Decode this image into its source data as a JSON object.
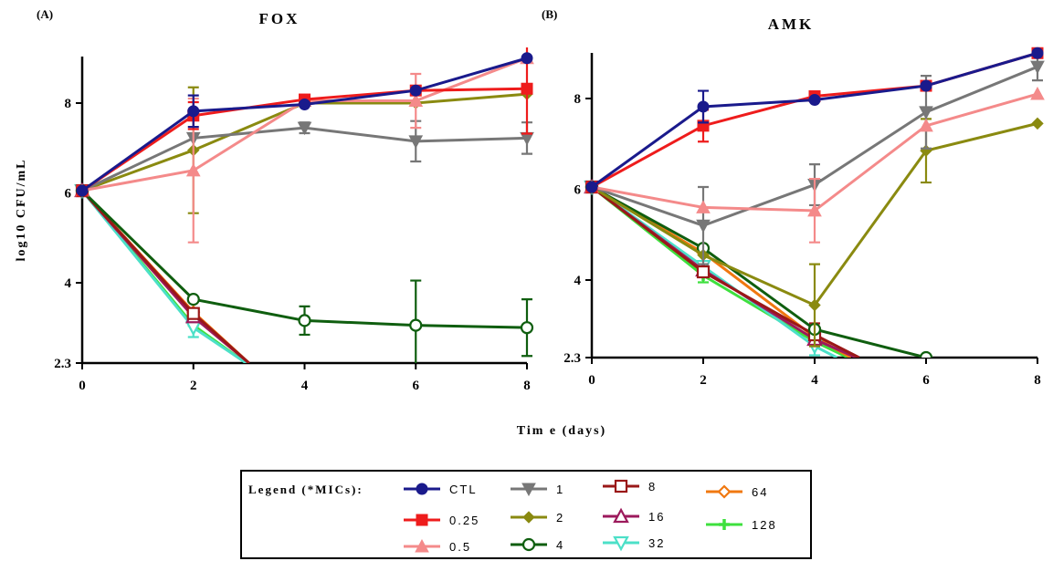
{
  "xlabel": "Tim e (days)",
  "ylabel": "log10 CFU/mL",
  "legend": {
    "title": "Legend (*MICs):",
    "colors": {
      "CTL": "#1a1a8c",
      "0.25": "#ee1c1c",
      "0.5": "#f48a8a",
      "1": "#777777",
      "2": "#8a8a10",
      "4": "#0f5e0f",
      "8": "#9a1818",
      "16": "#9c1a5c",
      "32": "#4ce0c8",
      "64": "#f07810",
      "128": "#3ee03e"
    },
    "markers": {
      "CTL": "circle",
      "0.25": "square",
      "0.5": "triangle-up",
      "1": "triangle-down",
      "2": "diamond",
      "4": "circle-open",
      "8": "square-open",
      "16": "triangle-up-open",
      "32": "triangle-down-open",
      "64": "diamond-open",
      "128": "plus"
    }
  },
  "chart_data": [
    {
      "type": "line",
      "panel_label": "(A)",
      "title": "FOX",
      "x_ticks": [
        0,
        2,
        4,
        6,
        8
      ],
      "y_ticks": [
        2.3,
        4,
        6,
        8
      ],
      "y_tick_labels": [
        "2.3",
        "4",
        "6",
        "8"
      ],
      "xlim": [
        0,
        8
      ],
      "ylim": [
        2.3,
        9.1
      ],
      "series": [
        {
          "name": "CTL",
          "x": [
            0,
            2,
            4,
            6,
            8
          ],
          "y": [
            6.05,
            7.82,
            7.97,
            8.28,
            9.0
          ],
          "err": [
            0,
            0.35,
            0,
            0,
            0
          ]
        },
        {
          "name": "0.25",
          "x": [
            0,
            2,
            4,
            6,
            8
          ],
          "y": [
            6.05,
            7.72,
            8.08,
            8.28,
            8.32
          ],
          "err": [
            0,
            0.3,
            0,
            0,
            1.0
          ]
        },
        {
          "name": "0.5",
          "x": [
            0,
            2,
            4,
            6,
            8
          ],
          "y": [
            6.05,
            6.5,
            8.05,
            8.05,
            9.0
          ],
          "err": [
            0,
            1.6,
            0,
            0.6,
            0
          ]
        },
        {
          "name": "1",
          "x": [
            0,
            2,
            4,
            6,
            8
          ],
          "y": [
            6.05,
            7.22,
            7.45,
            7.15,
            7.22
          ],
          "err": [
            0,
            0,
            0.12,
            0.45,
            0.35
          ]
        },
        {
          "name": "2",
          "x": [
            0,
            2,
            4,
            6,
            8
          ],
          "y": [
            6.05,
            6.95,
            8.0,
            8.0,
            8.2
          ],
          "err": [
            0,
            1.4,
            0,
            0,
            0
          ]
        },
        {
          "name": "4",
          "x": [
            0,
            2,
            4,
            6,
            8
          ],
          "y": [
            6.05,
            3.65,
            3.2,
            3.1,
            3.05
          ],
          "err": [
            0,
            0,
            0.3,
            0.95,
            0.6
          ]
        },
        {
          "name": "8",
          "x": [
            0,
            2,
            3
          ],
          "y": [
            6.05,
            3.35,
            2.3
          ],
          "err": [
            0,
            0,
            0
          ]
        },
        {
          "name": "16",
          "x": [
            0,
            2,
            3
          ],
          "y": [
            6.05,
            3.28,
            2.3
          ],
          "err": [
            0,
            0,
            0
          ]
        },
        {
          "name": "32",
          "x": [
            0,
            2,
            2.95
          ],
          "y": [
            6.05,
            3.05,
            2.3
          ],
          "err": [
            0,
            0.2,
            0
          ]
        },
        {
          "name": "64",
          "x": [
            0,
            2,
            3
          ],
          "y": [
            6.05,
            3.38,
            2.3
          ],
          "err": [
            0,
            0,
            0
          ]
        },
        {
          "name": "128",
          "x": [
            0,
            2,
            2.95
          ],
          "y": [
            6.05,
            3.1,
            2.3
          ],
          "err": [
            0,
            0,
            0
          ]
        }
      ]
    },
    {
      "type": "line",
      "panel_label": "(B)",
      "title": "AMK",
      "x_ticks": [
        0,
        2,
        4,
        6,
        8
      ],
      "y_ticks": [
        2.3,
        4,
        6,
        8
      ],
      "y_tick_labels": [
        "2.3",
        "4",
        "6",
        "8"
      ],
      "xlim": [
        0,
        8
      ],
      "ylim": [
        2.3,
        9.1
      ],
      "series": [
        {
          "name": "CTL",
          "x": [
            0,
            2,
            4,
            6,
            8
          ],
          "y": [
            6.05,
            7.82,
            7.97,
            8.28,
            9.0
          ],
          "err": [
            0,
            0.35,
            0,
            0,
            0
          ]
        },
        {
          "name": "0.25",
          "x": [
            0,
            2,
            4,
            6,
            8
          ],
          "y": [
            6.05,
            7.4,
            8.05,
            8.28,
            9.0
          ],
          "err": [
            0,
            0.35,
            0,
            0,
            0
          ]
        },
        {
          "name": "0.5",
          "x": [
            0,
            2,
            4,
            6,
            8
          ],
          "y": [
            6.05,
            5.6,
            5.53,
            7.4,
            8.1
          ],
          "err": [
            0,
            0,
            0.7,
            0,
            0
          ]
        },
        {
          "name": "1",
          "x": [
            0,
            2,
            4,
            6,
            8
          ],
          "y": [
            6.05,
            5.2,
            6.1,
            7.7,
            8.7
          ],
          "err": [
            0,
            0.85,
            0.45,
            0.8,
            0.3
          ]
        },
        {
          "name": "2",
          "x": [
            0,
            2,
            4,
            6,
            8
          ],
          "y": [
            6.05,
            4.55,
            3.45,
            6.85,
            7.45
          ],
          "err": [
            0,
            0,
            0.9,
            0.7,
            0
          ]
        },
        {
          "name": "4",
          "x": [
            0,
            2,
            4,
            6
          ],
          "y": [
            6.05,
            4.7,
            2.92,
            2.3
          ],
          "err": [
            0,
            0,
            0,
            0
          ]
        },
        {
          "name": "8",
          "x": [
            0,
            2,
            4,
            4.8
          ],
          "y": [
            6.05,
            4.18,
            2.8,
            2.3
          ],
          "err": [
            0,
            0,
            0.25,
            0
          ]
        },
        {
          "name": "16",
          "x": [
            0,
            2,
            4,
            4.75
          ],
          "y": [
            6.05,
            4.22,
            2.7,
            2.3
          ],
          "err": [
            0,
            0,
            0,
            0
          ]
        },
        {
          "name": "32",
          "x": [
            0,
            2,
            4,
            4.4
          ],
          "y": [
            6.05,
            4.3,
            2.55,
            2.3
          ],
          "err": [
            0,
            0,
            0.2,
            0
          ]
        },
        {
          "name": "64",
          "x": [
            0,
            2,
            4,
            4.65
          ],
          "y": [
            6.05,
            4.6,
            2.75,
            2.3
          ],
          "err": [
            0,
            0,
            0,
            0
          ]
        },
        {
          "name": "128",
          "x": [
            0,
            2,
            4,
            4.6
          ],
          "y": [
            6.05,
            4.1,
            2.65,
            2.3
          ],
          "err": [
            0,
            0.15,
            0,
            0
          ]
        }
      ]
    }
  ]
}
